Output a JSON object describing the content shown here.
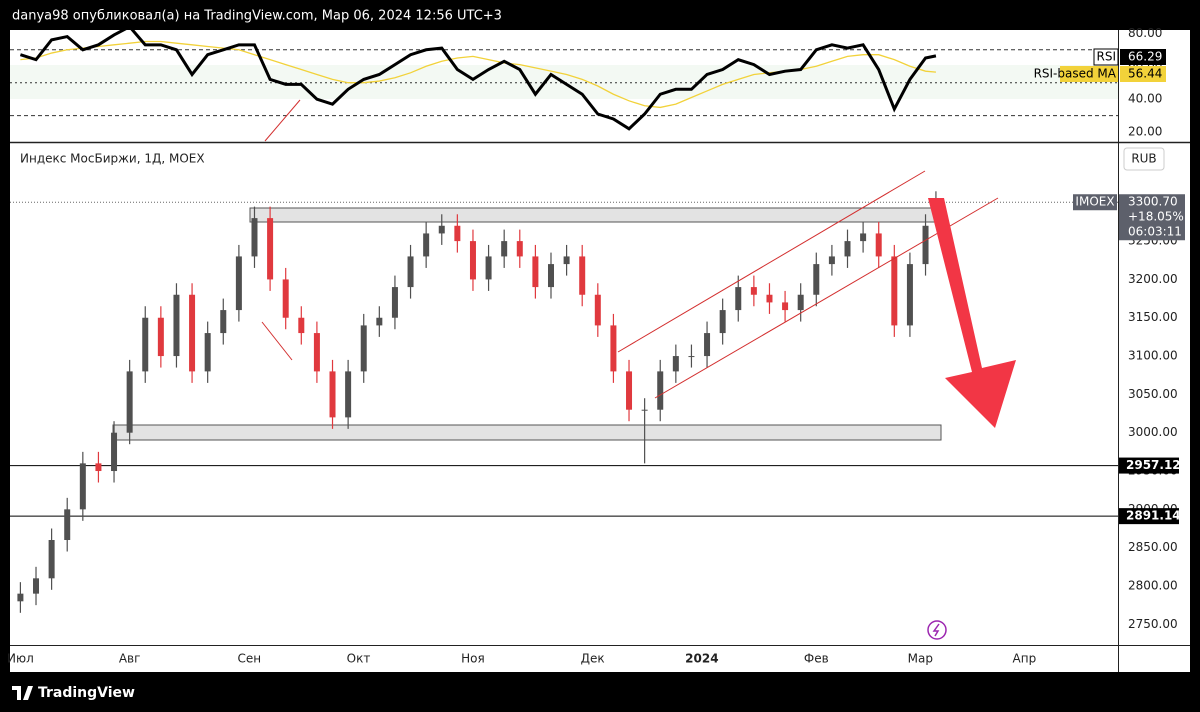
{
  "header": {
    "text": "danya98 опубликовал(а) на TradingView.com, Мар 06, 2024 12:56 UTC+3"
  },
  "footer": {
    "brand": "TradingView"
  },
  "chart_data": {
    "type": "candlestick",
    "title": "Индекс МосБиржи, 1Д, MOEX",
    "currency": "RUB",
    "up_color": "#505050",
    "down_color": "#e0393e",
    "x": [
      0,
      3,
      6,
      9,
      12,
      15,
      18,
      21,
      24,
      27,
      30,
      33,
      36,
      39,
      42,
      45,
      48,
      51,
      54,
      57,
      60,
      63,
      66,
      69,
      72,
      75,
      78,
      81,
      84,
      87,
      90,
      93,
      96,
      99,
      102,
      105,
      108,
      111,
      114,
      117,
      120,
      123,
      126,
      129,
      132,
      135,
      138,
      141,
      144,
      147,
      150,
      153,
      156,
      159,
      162,
      165,
      168,
      171,
      174,
      176
    ],
    "open": [
      2780,
      2790,
      2810,
      2860,
      2900,
      2960,
      2950,
      3000,
      3080,
      3150,
      3100,
      3180,
      3080,
      3130,
      3160,
      3230,
      3280,
      3200,
      3150,
      3130,
      3080,
      3020,
      3080,
      3140,
      3150,
      3190,
      3230,
      3260,
      3270,
      3250,
      3200,
      3230,
      3250,
      3230,
      3190,
      3220,
      3230,
      3180,
      3140,
      3080,
      3030,
      3030,
      3080,
      3100,
      3100,
      3130,
      3160,
      3190,
      3180,
      3170,
      3160,
      3180,
      3220,
      3230,
      3250,
      3260,
      3230,
      3140,
      3220,
      3285
    ],
    "high": [
      2805,
      2825,
      2875,
      2915,
      2975,
      2975,
      3015,
      3095,
      3165,
      3165,
      3195,
      3195,
      3145,
      3175,
      3245,
      3295,
      3295,
      3215,
      3165,
      3145,
      3095,
      3095,
      3155,
      3165,
      3205,
      3245,
      3275,
      3285,
      3285,
      3265,
      3245,
      3265,
      3265,
      3245,
      3235,
      3245,
      3245,
      3195,
      3155,
      3095,
      3045,
      3095,
      3115,
      3115,
      3145,
      3175,
      3205,
      3205,
      3195,
      3185,
      3195,
      3235,
      3245,
      3265,
      3275,
      3275,
      3245,
      3235,
      3285,
      3315
    ],
    "low": [
      2765,
      2775,
      2795,
      2845,
      2885,
      2935,
      2935,
      2985,
      3065,
      3085,
      3085,
      3065,
      3065,
      3115,
      3145,
      3215,
      3185,
      3135,
      3115,
      3065,
      3005,
      3005,
      3065,
      3125,
      3135,
      3175,
      3215,
      3245,
      3235,
      3185,
      3185,
      3215,
      3215,
      3175,
      3175,
      3205,
      3165,
      3125,
      3065,
      3015,
      2960,
      3015,
      3065,
      3085,
      3085,
      3115,
      3145,
      3165,
      3155,
      3145,
      3145,
      3165,
      3205,
      3215,
      3235,
      3215,
      3125,
      3125,
      3205,
      3270
    ],
    "close": [
      2790,
      2810,
      2860,
      2900,
      2960,
      2950,
      3000,
      3080,
      3150,
      3100,
      3180,
      3080,
      3130,
      3160,
      3230,
      3280,
      3200,
      3150,
      3130,
      3080,
      3020,
      3080,
      3140,
      3150,
      3190,
      3230,
      3260,
      3270,
      3250,
      3200,
      3230,
      3250,
      3230,
      3190,
      3220,
      3230,
      3180,
      3140,
      3080,
      3030,
      3030,
      3080,
      3100,
      3100,
      3130,
      3160,
      3190,
      3180,
      3170,
      3160,
      3180,
      3220,
      3230,
      3250,
      3260,
      3230,
      3140,
      3220,
      3270,
      3300.7
    ],
    "xlim": [
      -2,
      211
    ],
    "xticks": [
      {
        "value": 0,
        "label": "Июл"
      },
      {
        "value": 21,
        "label": "Авг"
      },
      {
        "value": 44,
        "label": "Сен"
      },
      {
        "value": 65,
        "label": "Окт"
      },
      {
        "value": 87,
        "label": "Ноя"
      },
      {
        "value": 110,
        "label": "Дек"
      },
      {
        "value": 131,
        "label": "2024"
      },
      {
        "value": 153,
        "label": "Фев"
      },
      {
        "value": 173,
        "label": "Мар"
      },
      {
        "value": 193,
        "label": "Апр"
      }
    ],
    "ylim": [
      2723,
      3378
    ],
    "yticks": [
      {
        "value": 2750,
        "label": "2750.00"
      },
      {
        "value": 2800,
        "label": "2800.00"
      },
      {
        "value": 2850,
        "label": "2850.00"
      },
      {
        "value": 2900,
        "label": "2900.00"
      },
      {
        "value": 2950,
        "label": "2950.00"
      },
      {
        "value": 3000,
        "label": "3000.00"
      },
      {
        "value": 3050,
        "label": "3050.00"
      },
      {
        "value": 3100,
        "label": "3100.00"
      },
      {
        "value": 3150,
        "label": "3150.00"
      },
      {
        "value": 3200,
        "label": "3200.00"
      },
      {
        "value": 3250,
        "label": "3250.00"
      }
    ],
    "price_lines": [
      {
        "value": 2957.12,
        "label": "2957.12"
      },
      {
        "value": 2891.14,
        "label": "2891.14"
      }
    ],
    "last": {
      "symbol": "IMOEX",
      "price": {
        "value": 3300.7,
        "label": "3300.70"
      },
      "change": "+18.05%",
      "countdown": "06:03:11"
    },
    "rsi_ylim": [
      14,
      82
    ],
    "rsi_yticks": [
      {
        "value": 20,
        "label": "20.00"
      },
      {
        "value": 40,
        "label": "40.00"
      },
      {
        "value": 60,
        "label": "60.00"
      },
      {
        "value": 80,
        "label": "80.00"
      }
    ],
    "rsi_levels": [
      70,
      50,
      30
    ],
    "rsi_series": [
      {
        "name": "RSI",
        "color": "#000000",
        "values": [
          67,
          64,
          76,
          78,
          70,
          73,
          79,
          84,
          73,
          73,
          70,
          55,
          67,
          70,
          73,
          73,
          52,
          49,
          49,
          40,
          37,
          46,
          52,
          55,
          61,
          67,
          70,
          71,
          58,
          52,
          58,
          63,
          58,
          43,
          55,
          49,
          43,
          31,
          28,
          22,
          31,
          43,
          46,
          46,
          55,
          58,
          64,
          61,
          55,
          57,
          58,
          70,
          73,
          71,
          73,
          58,
          34,
          52,
          65,
          66.29
        ]
      },
      {
        "name": "RSI-based MA",
        "color": "#f2d23a",
        "values": [
          64,
          65,
          68,
          70,
          71,
          72,
          73,
          74,
          75,
          75,
          74,
          73,
          72,
          71,
          70,
          67,
          64,
          61,
          58,
          55,
          52,
          50,
          50,
          51,
          53,
          56,
          60,
          63,
          65,
          66,
          64,
          62,
          61,
          59,
          57,
          55,
          52,
          48,
          43,
          39,
          36,
          35,
          37,
          41,
          45,
          49,
          52,
          55,
          56,
          57,
          58,
          60,
          63,
          66,
          67,
          67,
          64,
          60,
          57,
          56.44
        ]
      }
    ]
  }
}
